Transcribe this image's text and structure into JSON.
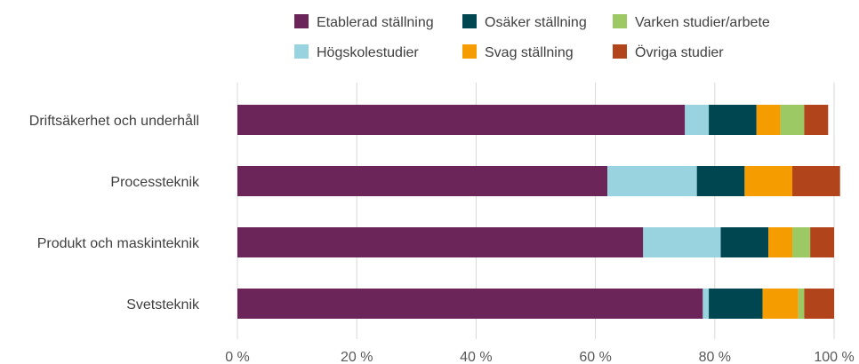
{
  "chart_data": {
    "type": "bar",
    "orientation": "horizontal",
    "stacked": true,
    "categories": [
      "Driftsäkerhet och underhåll",
      "Processteknik",
      "Produkt och maskinteknik",
      "Svetsteknik"
    ],
    "series": [
      {
        "name": "Etablerad ställning",
        "color": "#6b2559",
        "values": [
          75,
          62,
          68,
          78
        ]
      },
      {
        "name": "Högskolestudier",
        "color": "#99d3df",
        "values": [
          4,
          15,
          13,
          1
        ]
      },
      {
        "name": "Osäker ställning",
        "color": "#004650",
        "values": [
          8,
          8,
          8,
          9
        ]
      },
      {
        "name": "Svag ställning",
        "color": "#f59c00",
        "values": [
          4,
          8,
          4,
          6
        ]
      },
      {
        "name": "Varken studier/arbete",
        "color": "#9dc964",
        "values": [
          4,
          0,
          3,
          1
        ]
      },
      {
        "name": "Övriga studier",
        "color": "#b1441b",
        "values": [
          4,
          8,
          4,
          5
        ]
      }
    ],
    "xlim": [
      0,
      100
    ],
    "xticks": [
      0,
      20,
      40,
      60,
      80,
      100
    ],
    "xtick_labels": [
      "0 %",
      "20 %",
      "40 %",
      "60 %",
      "80 %",
      "100 %"
    ],
    "grid": "vertical",
    "legend_position": "top",
    "legend_order": [
      "Etablerad ställning",
      "Osäker ställning",
      "Varken studier/arbete",
      "Högskolestudier",
      "Svag ställning",
      "Övriga studier"
    ]
  }
}
